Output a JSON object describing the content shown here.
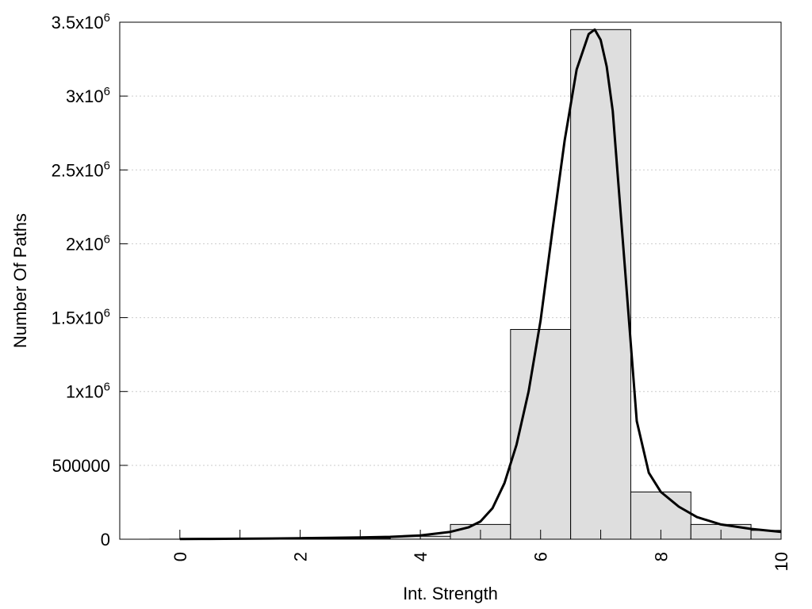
{
  "chart_data": {
    "type": "bar",
    "title": "",
    "xlabel": "Int. Strength",
    "ylabel": "Number Of Paths",
    "xlim": [
      -1,
      10
    ],
    "ylim": [
      0,
      3500000
    ],
    "grid": true,
    "legend": "none",
    "x_ticks": [
      {
        "value": 0,
        "label": "0"
      },
      {
        "value": 2,
        "label": "2"
      },
      {
        "value": 4,
        "label": "4"
      },
      {
        "value": 6,
        "label": "6"
      },
      {
        "value": 8,
        "label": "8"
      },
      {
        "value": 10,
        "label": "10"
      }
    ],
    "x_minor_ticks": [
      0,
      1,
      2,
      3,
      4,
      5,
      6,
      7,
      8,
      9,
      10
    ],
    "y_ticks": [
      {
        "value": 0,
        "label": "0",
        "base": "0",
        "exp": ""
      },
      {
        "value": 500000,
        "label": "500000",
        "base": "500000",
        "exp": ""
      },
      {
        "value": 1000000,
        "label": "1x10^6",
        "base": "1x10",
        "exp": "6"
      },
      {
        "value": 1500000,
        "label": "1.5x10^6",
        "base": "1.5x10",
        "exp": "6"
      },
      {
        "value": 2000000,
        "label": "2x10^6",
        "base": "2x10",
        "exp": "6"
      },
      {
        "value": 2500000,
        "label": "2.5x10^6",
        "base": "2.5x10",
        "exp": "6"
      },
      {
        "value": 3000000,
        "label": "3x10^6",
        "base": "3x10",
        "exp": "6"
      },
      {
        "value": 3500000,
        "label": "3.5x10^6",
        "base": "3.5x10",
        "exp": "6"
      }
    ],
    "bars": {
      "centers": [
        0,
        1,
        2,
        3,
        4,
        5,
        6,
        7,
        8,
        9,
        10
      ],
      "width": 1,
      "values": [
        500,
        1000,
        3000,
        6000,
        20000,
        100000,
        1420000,
        3450000,
        320000,
        100000,
        60000
      ],
      "fill": "#dedede",
      "stroke": "#000000"
    },
    "curve": {
      "x": [
        0,
        0.5,
        1,
        1.5,
        2,
        2.5,
        3,
        3.5,
        4,
        4.5,
        4.8,
        5,
        5.2,
        5.4,
        5.6,
        5.8,
        6,
        6.2,
        6.4,
        6.6,
        6.8,
        6.9,
        7.0,
        7.1,
        7.2,
        7.4,
        7.6,
        7.8,
        8.0,
        8.3,
        8.6,
        9.0,
        9.5,
        10
      ],
      "y": [
        1000,
        2000,
        3000,
        5000,
        7000,
        9000,
        12000,
        16000,
        25000,
        50000,
        80000,
        120000,
        210000,
        380000,
        640000,
        1000000,
        1480000,
        2100000,
        2700000,
        3180000,
        3420000,
        3450000,
        3380000,
        3200000,
        2900000,
        1850000,
        800000,
        450000,
        320000,
        220000,
        150000,
        100000,
        70000,
        50000
      ],
      "stroke": "#000000"
    },
    "frame_color": "#000000",
    "grid_color": "#cccccc"
  }
}
